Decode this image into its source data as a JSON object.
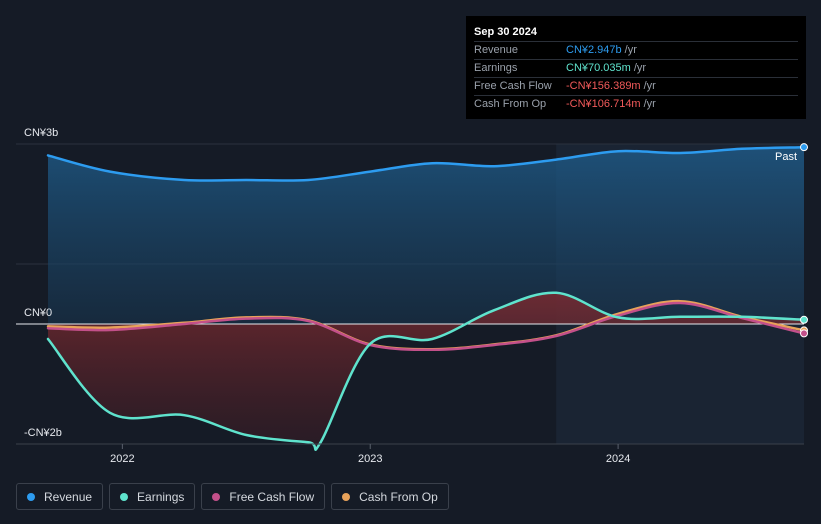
{
  "tooltip": {
    "date": "Sep 30 2024",
    "rows": [
      {
        "label": "Revenue",
        "value": "CN¥2.947b",
        "unit": "/yr",
        "color": "#2d9cf0"
      },
      {
        "label": "Earnings",
        "value": "CN¥70.035m",
        "unit": "/yr",
        "color": "#5fe3cd"
      },
      {
        "label": "Free Cash Flow",
        "value": "-CN¥156.389m",
        "unit": "/yr",
        "color": "#f25a5a"
      },
      {
        "label": "Cash From Op",
        "value": "-CN¥106.714m",
        "unit": "/yr",
        "color": "#f25a5a"
      }
    ]
  },
  "legend": [
    {
      "label": "Revenue",
      "color": "#2d9cf0"
    },
    {
      "label": "Earnings",
      "color": "#5fe3cd"
    },
    {
      "label": "Free Cash Flow",
      "color": "#c3508a"
    },
    {
      "label": "Cash From Op",
      "color": "#e8a25a"
    }
  ],
  "chart_data": {
    "type": "area",
    "y_tick_labels": [
      "CN¥3b",
      "CN¥0",
      "-CN¥2b"
    ],
    "ylim": [
      -2000,
      3000
    ],
    "y_unit": "CN¥ millions",
    "x_tick_labels": [
      "2022",
      "2023",
      "2024"
    ],
    "xlim": [
      2021.7,
      2024.75
    ],
    "past_label": "Past",
    "past_region_start": 2023.75,
    "series": [
      {
        "name": "Revenue",
        "color": "#2d9cf0",
        "x": [
          2021.7,
          2021.95,
          2022.25,
          2022.5,
          2022.75,
          2023.0,
          2023.25,
          2023.5,
          2023.75,
          2024.0,
          2024.25,
          2024.5,
          2024.75
        ],
        "y": [
          2810,
          2540,
          2400,
          2400,
          2400,
          2540,
          2680,
          2630,
          2740,
          2880,
          2850,
          2920,
          2947
        ]
      },
      {
        "name": "Earnings",
        "color": "#5fe3cd",
        "x": [
          2021.7,
          2021.95,
          2022.25,
          2022.5,
          2022.75,
          2022.8,
          2023.0,
          2023.25,
          2023.5,
          2023.75,
          2024.0,
          2024.25,
          2024.5,
          2024.75
        ],
        "y": [
          -250,
          -1480,
          -1520,
          -1850,
          -1970,
          -1970,
          -330,
          -250,
          230,
          520,
          110,
          120,
          120,
          70
        ]
      },
      {
        "name": "Free Cash Flow",
        "color": "#c3508a",
        "x": [
          2021.7,
          2021.95,
          2022.25,
          2022.5,
          2022.75,
          2023.0,
          2023.25,
          2023.5,
          2023.75,
          2024.0,
          2024.25,
          2024.5,
          2024.75
        ],
        "y": [
          -70,
          -100,
          0,
          90,
          50,
          -350,
          -430,
          -350,
          -200,
          140,
          350,
          100,
          -156
        ]
      },
      {
        "name": "Cash From Op",
        "color": "#e8a25a",
        "x": [
          2021.7,
          2021.95,
          2022.25,
          2022.5,
          2022.75,
          2023.0,
          2023.25,
          2023.5,
          2023.75,
          2024.0,
          2024.25,
          2024.5,
          2024.75
        ],
        "y": [
          -40,
          -60,
          20,
          110,
          60,
          -340,
          -420,
          -340,
          -190,
          170,
          380,
          120,
          -107
        ]
      }
    ],
    "grid": true
  }
}
